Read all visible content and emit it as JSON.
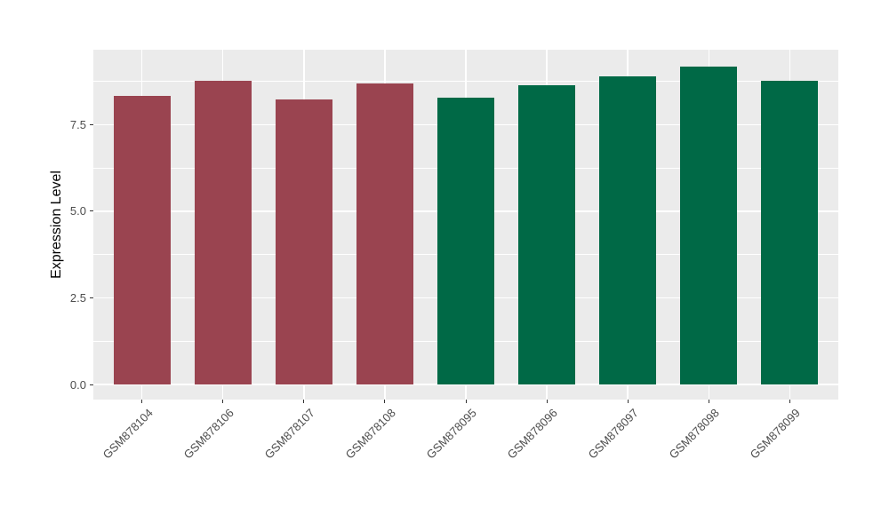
{
  "chart_data": {
    "type": "bar",
    "title": "",
    "ylabel": "Expression Level",
    "xlabel": "",
    "categories": [
      "GSM878104",
      "GSM878106",
      "GSM878107",
      "GSM878108",
      "GSM878095",
      "GSM878096",
      "GSM878097",
      "GSM878098",
      "GSM878099"
    ],
    "values": [
      8.32,
      8.76,
      8.22,
      8.68,
      8.28,
      8.63,
      8.89,
      9.17,
      8.77
    ],
    "bar_colors": [
      "#9A4450",
      "#9A4450",
      "#9A4450",
      "#9A4450",
      "#006946",
      "#006946",
      "#006946",
      "#006946",
      "#006946"
    ],
    "groups": [
      "red-group",
      "red-group",
      "red-group",
      "red-group",
      "green-group",
      "green-group",
      "green-group",
      "green-group",
      "green-group"
    ],
    "yticks": [
      {
        "value": 0.0,
        "label": "0.0"
      },
      {
        "value": 2.5,
        "label": "2.5"
      },
      {
        "value": 5.0,
        "label": "5.0"
      },
      {
        "value": 7.5,
        "label": "7.5"
      }
    ],
    "ylim": [
      0,
      9.66
    ],
    "grid": true,
    "legend": "none",
    "panel_background": "#EBEBEB",
    "gridline_color": "#FFFFFF",
    "axis_text_color": "#4D4D4D"
  }
}
